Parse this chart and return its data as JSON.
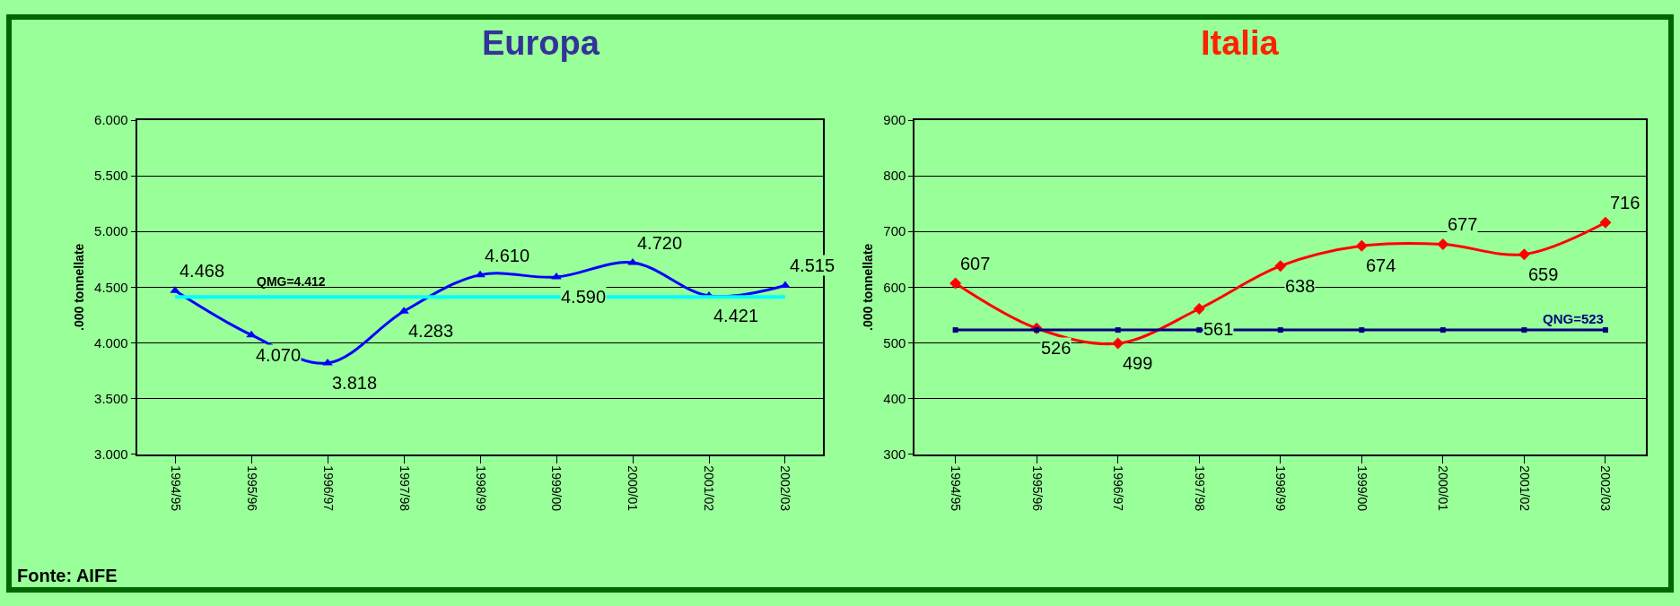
{
  "chart_data": [
    {
      "type": "line",
      "title": "Europa",
      "ylabel": ".000 tonnellate",
      "categories": [
        "1994/95",
        "1995/96",
        "1996/97",
        "1997/98",
        "1998/99",
        "1999/00",
        "2000/01",
        "2001/02",
        "2002/03"
      ],
      "series": [
        {
          "color": "#0000ff",
          "marker": "triangle",
          "values": [
            4468,
            4070,
            3818,
            4283,
            4610,
            4590,
            4720,
            4421,
            4515
          ],
          "value_labels": [
            "4.468",
            "4.070",
            "3.818",
            "4.283",
            "4.610",
            "4.590",
            "4.720",
            "4.421",
            "4.515"
          ]
        }
      ],
      "ref_lines": [
        {
          "axis": "y",
          "value": 4412,
          "label": "QMG=4.412",
          "color": "#00ffff"
        }
      ],
      "ylim": [
        3000,
        6000
      ],
      "yticks": [
        {
          "value": 3000,
          "label": "3.000"
        },
        {
          "value": 3500,
          "label": "3.500"
        },
        {
          "value": 4000,
          "label": "4.000"
        },
        {
          "value": 4500,
          "label": "4.500"
        },
        {
          "value": 5000,
          "label": "5.000"
        },
        {
          "value": 5500,
          "label": "5.500"
        },
        {
          "value": 6000,
          "label": "6.000"
        }
      ],
      "grid": "y",
      "annotations": [
        "Fonte: AIFE"
      ]
    },
    {
      "type": "line",
      "title": "Italia",
      "ylabel": ".000 tonnellate",
      "categories": [
        "1994/95",
        "1995/96",
        "1996/97",
        "1997/98",
        "1998/99",
        "1999/00",
        "2000/01",
        "2001/02",
        "2002/03"
      ],
      "series": [
        {
          "color": "#ff0000",
          "marker": "diamond",
          "values": [
            607,
            526,
            499,
            561,
            638,
            674,
            677,
            659,
            716
          ],
          "data_labels": true
        },
        {
          "name": "QNG=523",
          "color": "#000080",
          "marker": "square",
          "values": [
            523,
            523,
            523,
            523,
            523,
            523,
            523,
            523,
            523
          ]
        }
      ],
      "ylim": [
        300,
        900
      ],
      "yticks": [
        300,
        400,
        500,
        600,
        700,
        800,
        900
      ],
      "grid": "y"
    }
  ]
}
